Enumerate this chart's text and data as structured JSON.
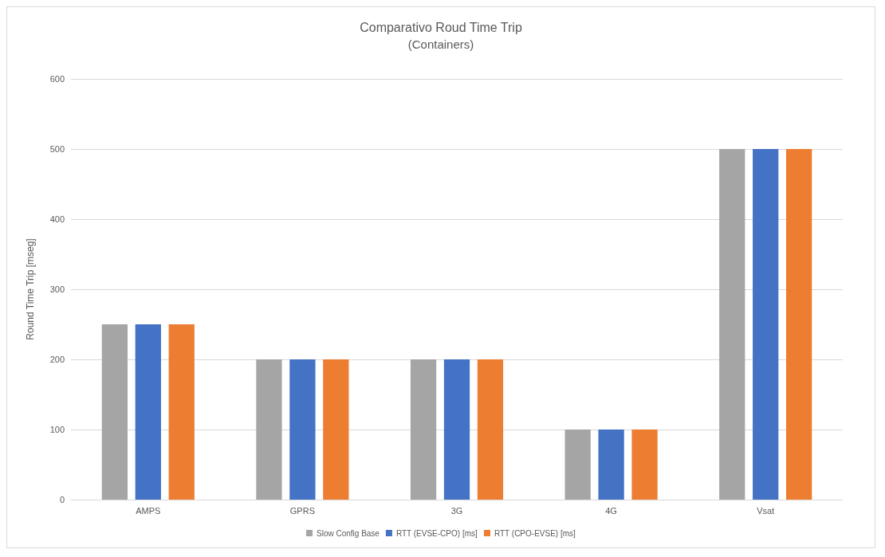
{
  "chart_data": {
    "type": "bar",
    "title": "Comparativo Roud Time Trip",
    "subtitle": "(Containers)",
    "ylabel": "Round Time Trip [mseg]",
    "categories": [
      "AMPS",
      "GPRS",
      "3G",
      "4G",
      "Vsat"
    ],
    "series": [
      {
        "name": "Slow Config Base",
        "color": "#a5a5a5",
        "values": [
          250,
          200,
          200,
          100,
          500
        ]
      },
      {
        "name": "RTT (EVSE-CPO) [ms]",
        "color": "#4472c4",
        "values": [
          250,
          200,
          200,
          100,
          500
        ]
      },
      {
        "name": "RTT (CPO-EVSE) [ms]",
        "color": "#ed7d31",
        "values": [
          250,
          200,
          200,
          100,
          500
        ]
      }
    ],
    "ylim": [
      0,
      600
    ],
    "yticks": [
      0,
      100,
      200,
      300,
      400,
      500,
      600
    ],
    "grid": "y",
    "legend": "bottom"
  }
}
